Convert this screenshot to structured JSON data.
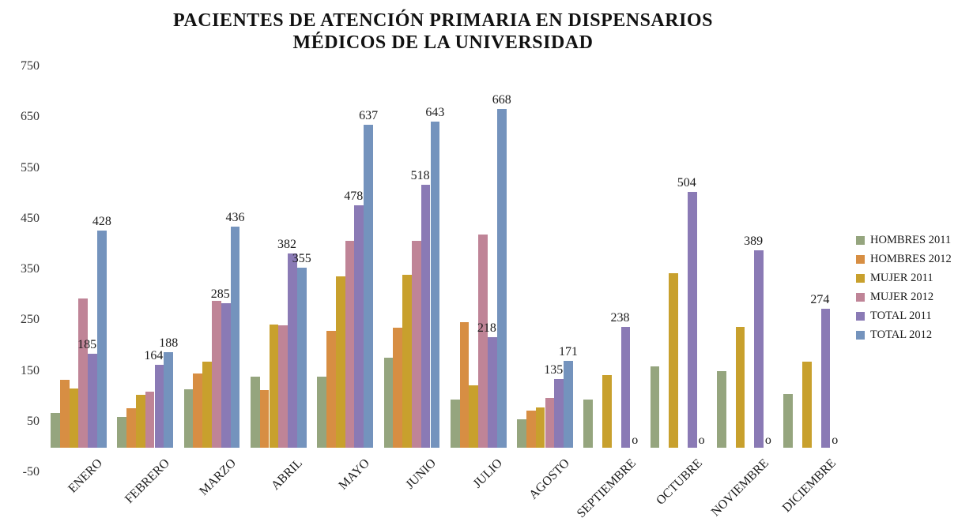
{
  "chart_data": {
    "type": "bar",
    "title": "PACIENTES DE ATENCIÓN PRIMARIA EN DISPENSARIOS MÉDICOS DE LA UNIVERSIDAD",
    "title_lines": {
      "line1": "PACIENTES DE ATENCIÓN PRIMARIA  EN DISPENSARIOS",
      "line2": "MÉDICOS  DE LA UNIVERSIDAD"
    },
    "categories": [
      "ENERO",
      "FEBRERO",
      "MARZO",
      "ABRIL",
      "MAYO",
      "JUNIO",
      "JULIO",
      "AGOSTO",
      "SEPTIEMBRE",
      "OCTUBRE",
      "NOVIEMBRE",
      "DICIEMBRE"
    ],
    "series": [
      {
        "name": "HOMBRES 2011",
        "color": "#95A57E",
        "values": [
          68,
          60,
          115,
          140,
          140,
          178,
          95,
          56,
          95,
          160,
          151,
          105
        ]
      },
      {
        "name": "HOMBRES 2012",
        "color": "#D78E43",
        "values": [
          134,
          78,
          146,
          114,
          230,
          236,
          248,
          73,
          0,
          0,
          0,
          0
        ]
      },
      {
        "name": "MUJER 2011",
        "color": "#C8A02D",
        "values": [
          117,
          104,
          170,
          242,
          338,
          340,
          123,
          79,
          143,
          344,
          238,
          169
        ]
      },
      {
        "name": "MUJER 2012",
        "color": "#BF8497",
        "values": [
          294,
          110,
          290,
          241,
          407,
          407,
          420,
          98,
          0,
          0,
          0,
          0
        ]
      },
      {
        "name": "TOTAL 2011",
        "color": "#8A7AB5",
        "values": [
          185,
          164,
          285,
          382,
          478,
          518,
          218,
          135,
          238,
          504,
          389,
          274
        ],
        "labels": [
          "185",
          "164",
          "285",
          "382",
          "478",
          "518",
          "218",
          "135",
          "238",
          "504",
          "389",
          "274"
        ]
      },
      {
        "name": "TOTAL 2012",
        "color": "#7493BD",
        "values": [
          428,
          188,
          436,
          355,
          637,
          643,
          668,
          171,
          0,
          0,
          0,
          0
        ],
        "labels": [
          "428",
          "188",
          "436",
          "355",
          "637",
          "643",
          "668",
          "171",
          "o",
          "o",
          "o",
          "o"
        ]
      }
    ],
    "yticks": [
      "750",
      "650",
      "550",
      "450",
      "350",
      "250",
      "150",
      "50",
      "-50"
    ],
    "ylim": [
      -50,
      750
    ],
    "grid": false,
    "axis_lines": false,
    "legend_position": "right",
    "x_label_rotation_deg": -45,
    "zero_label_display": "o"
  }
}
